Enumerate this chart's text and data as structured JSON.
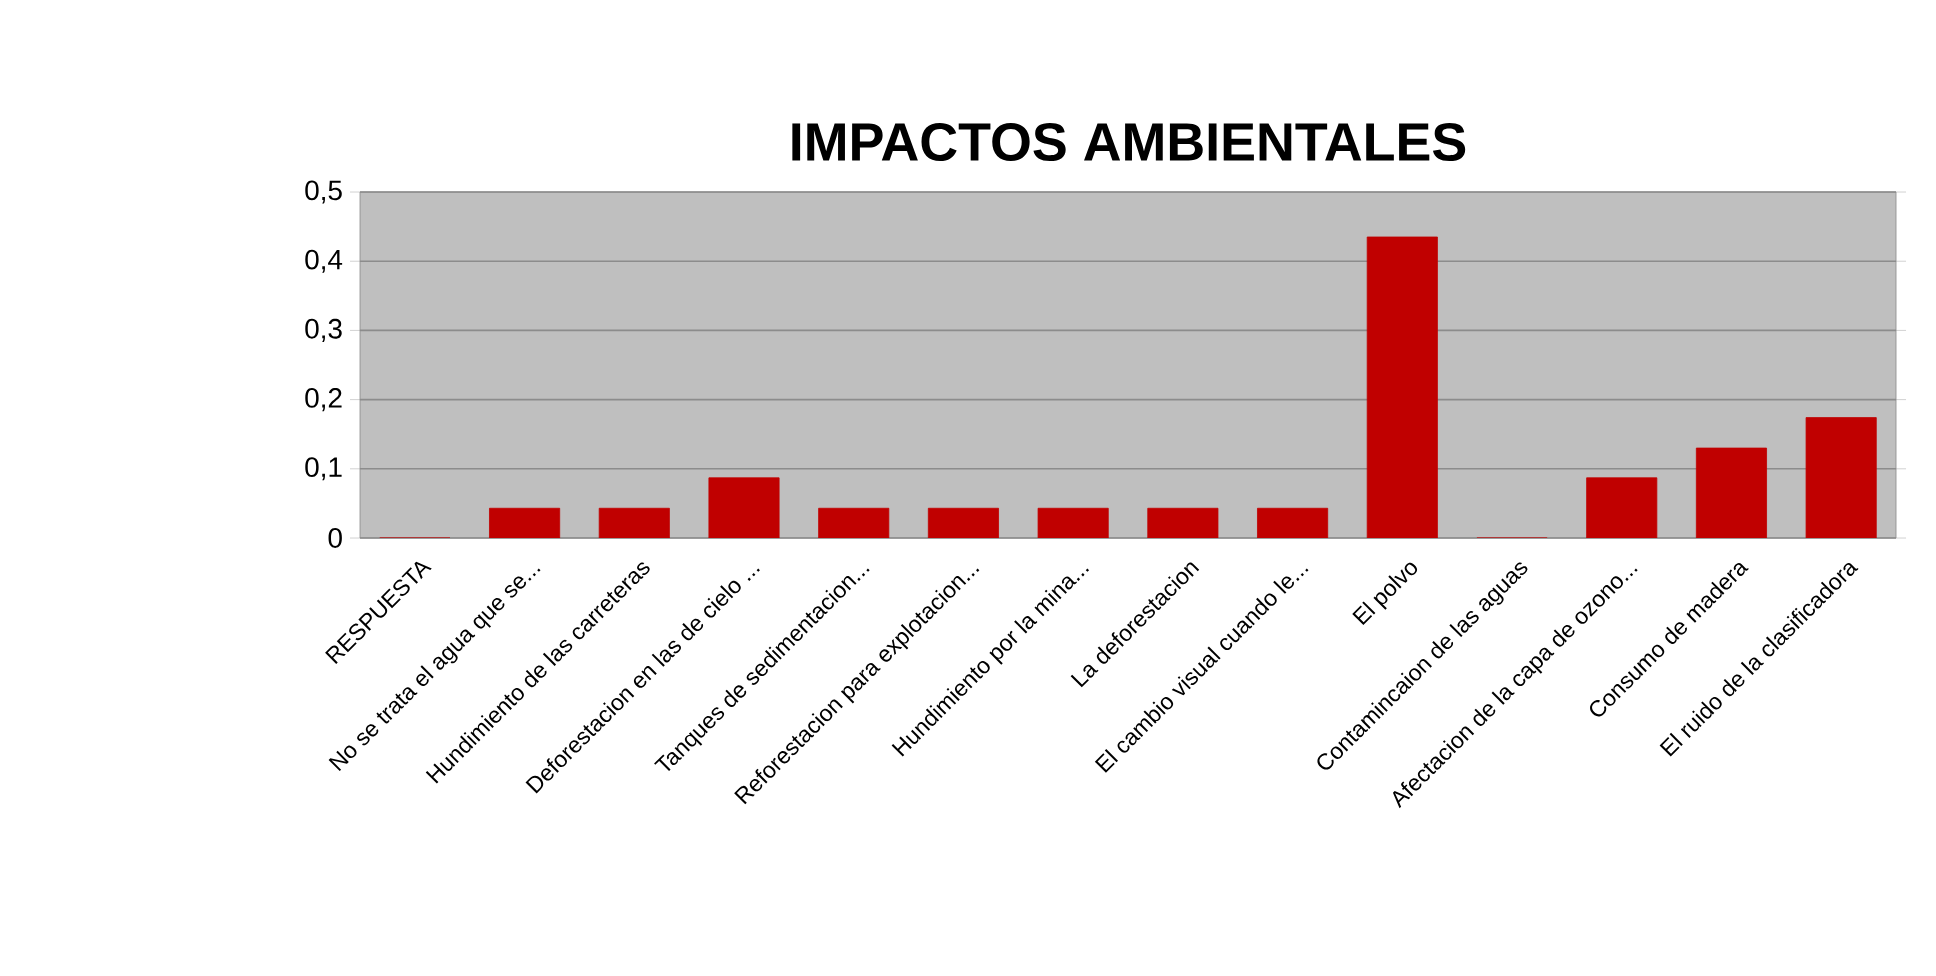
{
  "chart_data": {
    "type": "bar",
    "title": "IMPACTOS AMBIENTALES",
    "categories": [
      "RESPUESTA",
      "No se trata el agua que se...",
      "Hundimiento de las carreteras",
      "Deforestacion en las de cielo ...",
      "Tanques de sedimentacion...",
      "Reforestacion para explotacion...",
      "Hundimiento por la mina...",
      "La deforestacion",
      "El cambio visual cuando le...",
      "El polvo",
      "Contamincaion de las aguas",
      "Afectacion de la capa de ozono...",
      "Consumo de madera",
      "El ruido de la clasificadora"
    ],
    "values": [
      0,
      0.043,
      0.043,
      0.087,
      0.043,
      0.043,
      0.043,
      0.043,
      0.043,
      0.435,
      0,
      0.087,
      0.13,
      0.174
    ],
    "color": "#c00000",
    "ylim": [
      0,
      0.5
    ],
    "yticks": [
      0,
      {
        "value": 0.1,
        "label": "0,1"
      },
      {
        "value": 0.2,
        "label": "0,2"
      },
      {
        "value": 0.3,
        "label": "0,3"
      },
      {
        "value": 0.4,
        "label": "0,4"
      },
      {
        "value": 0.5,
        "label": "0,5"
      }
    ],
    "grid": "y"
  }
}
